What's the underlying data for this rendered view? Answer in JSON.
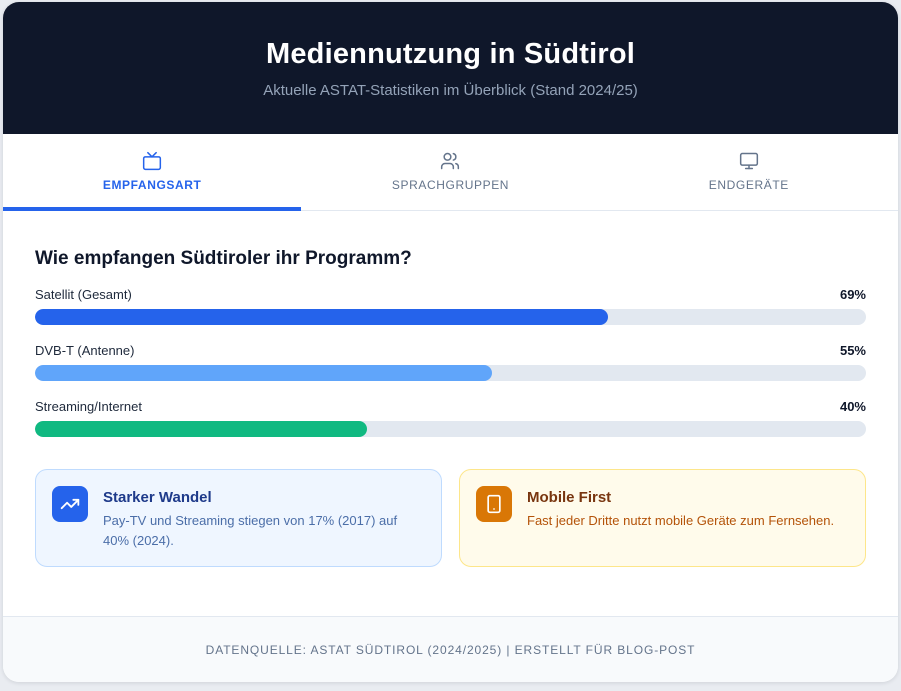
{
  "header": {
    "title": "Mediennutzung in Südtirol",
    "subtitle": "Aktuelle ASTAT-Statistiken im Überblick (Stand 2024/25)"
  },
  "tabs": [
    {
      "label": "EMPFANGSART",
      "icon": "tv-icon",
      "active": true
    },
    {
      "label": "SPRACHGRUPPEN",
      "icon": "users-icon",
      "active": false
    },
    {
      "label": "ENDGERÄTE",
      "icon": "monitor-icon",
      "active": false
    }
  ],
  "section": {
    "title": "Wie empfangen Südtiroler ihr Programm?"
  },
  "bars": [
    {
      "label": "Satellit (Gesamt)",
      "value_text": "69%",
      "value": 69,
      "color": "#2563eb"
    },
    {
      "label": "DVB-T (Antenne)",
      "value_text": "55%",
      "value": 55,
      "color": "#60a5fa"
    },
    {
      "label": "Streaming/Internet",
      "value_text": "40%",
      "value": 40,
      "color": "#10b981"
    }
  ],
  "cards": [
    {
      "icon": "trending-up-icon",
      "title": "Starker Wandel",
      "text": "Pay-TV und Streaming stiegen von 17% (2017) auf 40% (2024)."
    },
    {
      "icon": "tablet-icon",
      "title": "Mobile First",
      "text": "Fast jeder Dritte nutzt mobile Geräte zum Fernsehen."
    }
  ],
  "footer": {
    "text": "DATENQUELLE: ASTAT SÜDTIROL (2024/2025) | ERSTELLT FÜR BLOG-POST"
  }
}
